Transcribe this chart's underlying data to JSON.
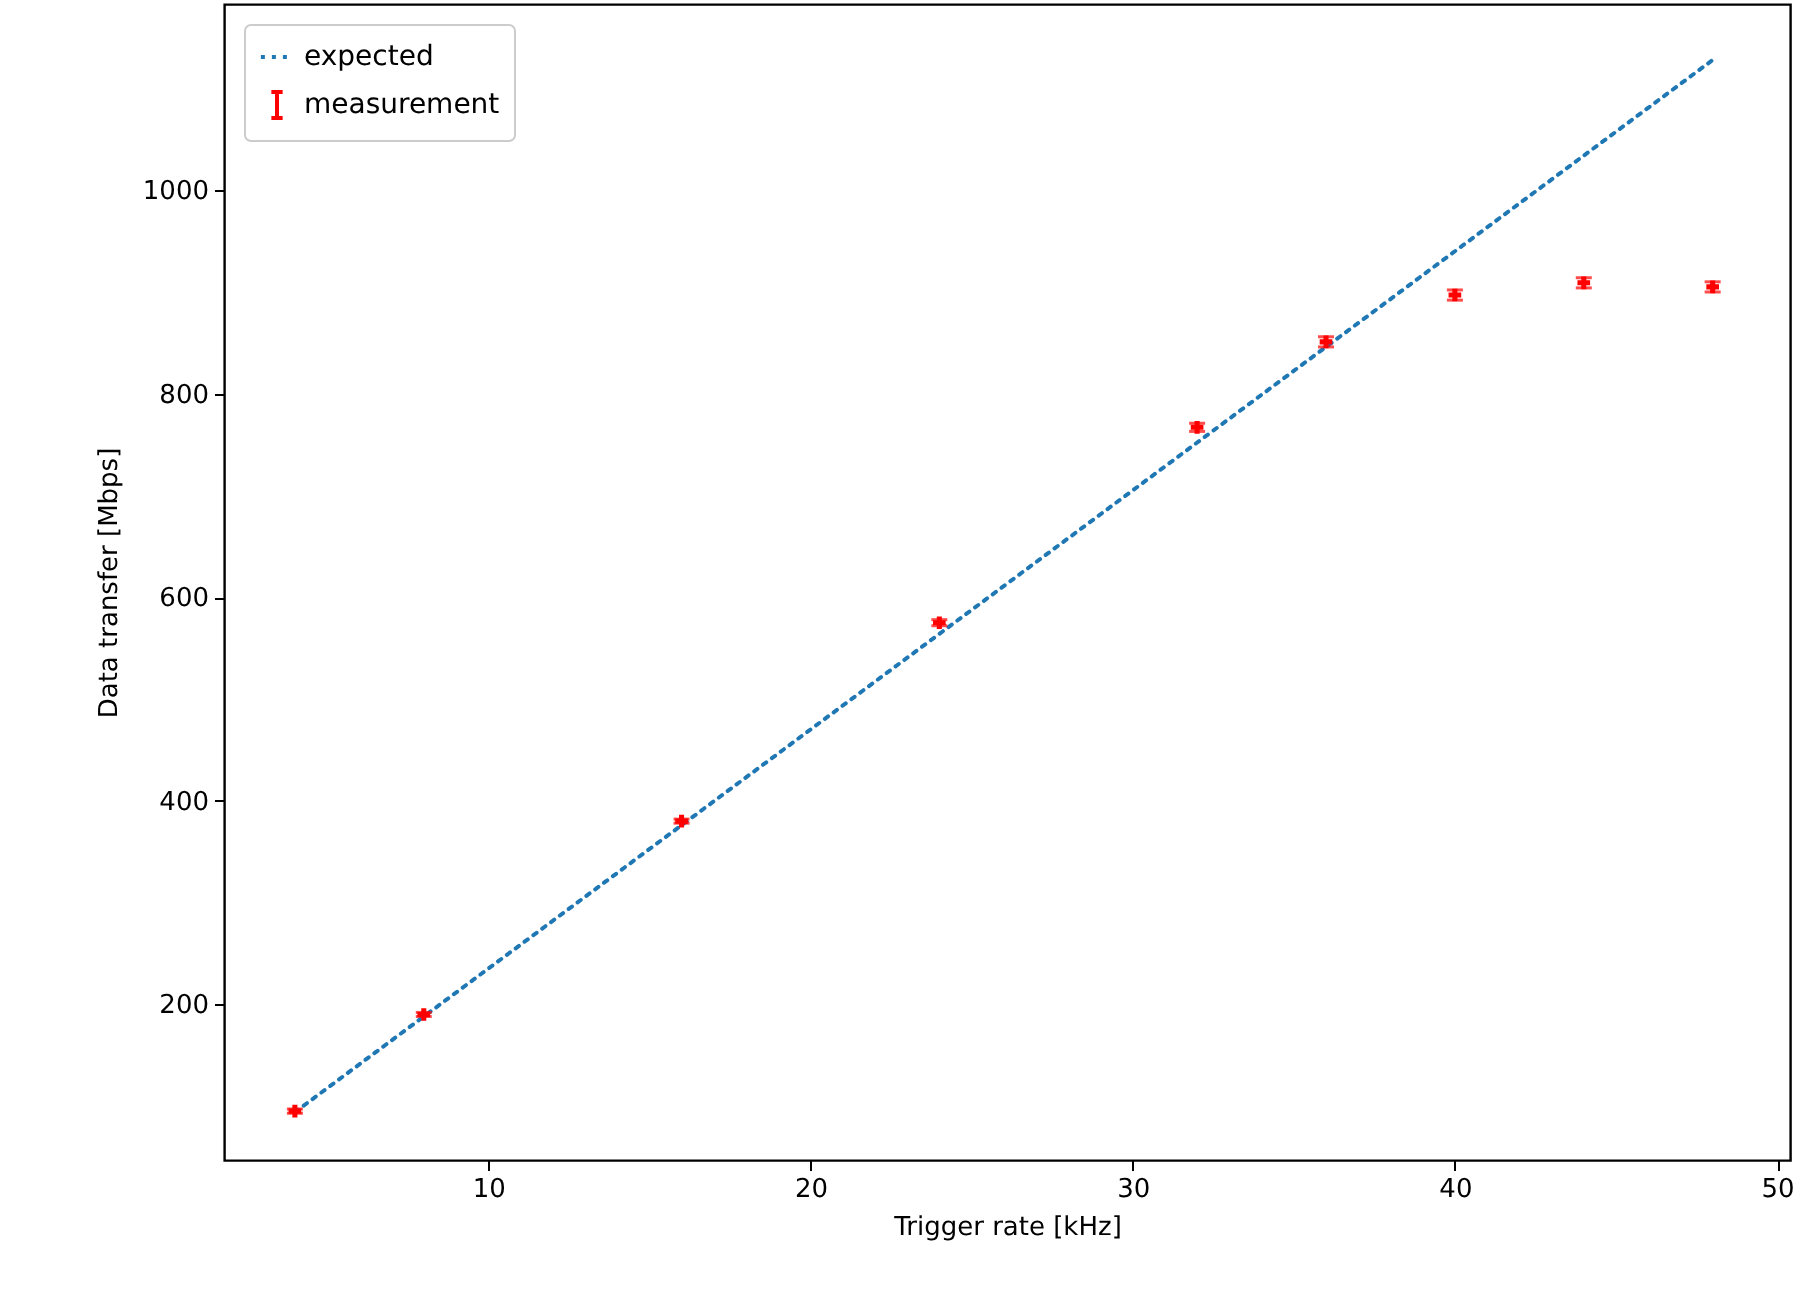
{
  "chart_data": {
    "type": "line",
    "xlabel": "Trigger rate [kHz]",
    "ylabel": "Data transfer [Mbps]",
    "xlim": [
      1.8,
      50.4
    ],
    "ylim": [
      47,
      1183
    ],
    "xticks": [
      10,
      20,
      30,
      40,
      50
    ],
    "yticks": [
      200,
      400,
      600,
      800,
      1000
    ],
    "grid": false,
    "legend": "top left",
    "series": [
      {
        "name": "expected",
        "type": "line",
        "color": "#1f77b4",
        "line_style": "dotted",
        "x": [
          4,
          48
        ],
        "values": [
          94,
          1128
        ]
      },
      {
        "name": "measurement",
        "type": "scatter",
        "color": "#ff0000",
        "x": [
          4,
          8,
          16,
          24,
          32,
          36,
          40,
          44,
          48
        ],
        "values": [
          95,
          190,
          380,
          575,
          767,
          851,
          897,
          909,
          905
        ],
        "errors": [
          2,
          2,
          2,
          3,
          4,
          5,
          5,
          5,
          5
        ]
      }
    ]
  }
}
